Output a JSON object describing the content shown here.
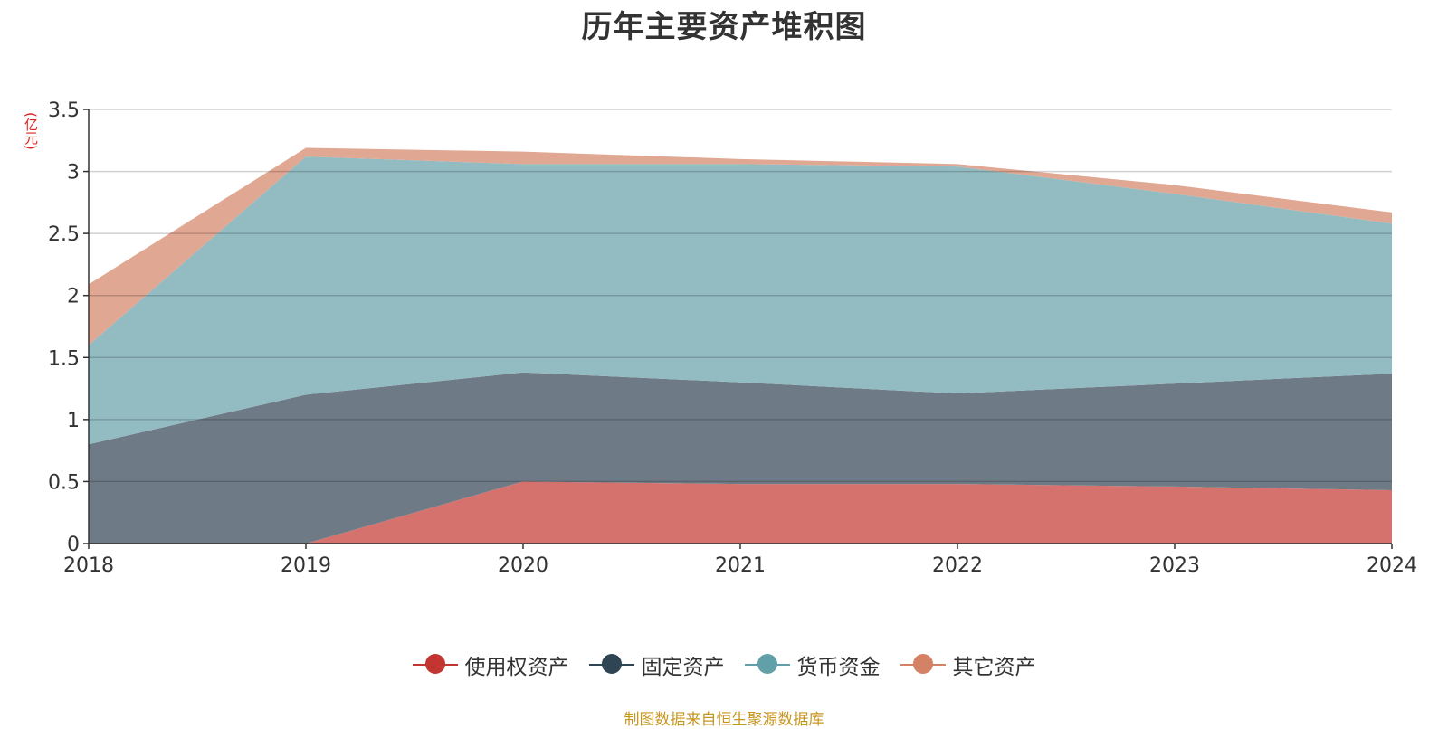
{
  "chart_data": {
    "type": "area",
    "stacked": true,
    "title": "历年主要资产堆积图",
    "unit_label": "(亿元)",
    "x": [
      "2018",
      "2019",
      "2020",
      "2021",
      "2022",
      "2023",
      "2024"
    ],
    "ylim": [
      0,
      3.5
    ],
    "yticks": [
      "0",
      "0.5",
      "1",
      "1.5",
      "2",
      "2.5",
      "3",
      "3.5"
    ],
    "grid": true,
    "legend_position": "bottom",
    "series": [
      {
        "name": "使用权资产",
        "color": "#c23531",
        "fill": "#d6726e",
        "values": [
          0,
          0,
          0.5,
          0.48,
          0.48,
          0.46,
          0.43
        ]
      },
      {
        "name": "固定资产",
        "color": "#2f4554",
        "fill": "#6e7b86",
        "values": [
          0.8,
          1.2,
          0.88,
          0.82,
          0.73,
          0.83,
          0.94
        ]
      },
      {
        "name": "货币资金",
        "color": "#61a0a8",
        "fill": "#93bcc2",
        "values": [
          0.8,
          1.92,
          1.68,
          1.76,
          1.83,
          1.53,
          1.21
        ]
      },
      {
        "name": "其它资产",
        "color": "#d48265",
        "fill": "#e0a793",
        "values": [
          0.49,
          0.07,
          0.1,
          0.04,
          0.02,
          0.07,
          0.09
        ]
      }
    ],
    "source": "制图数据来自恒生聚源数据库"
  }
}
